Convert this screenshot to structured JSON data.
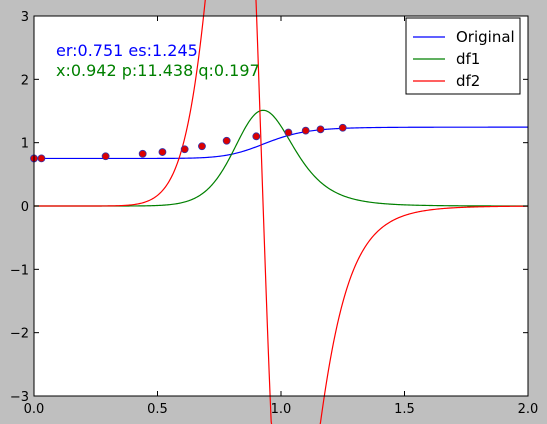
{
  "chart_data": {
    "type": "line",
    "xlim": [
      0.0,
      2.0
    ],
    "ylim": [
      -3,
      3
    ],
    "x_ticks": [
      "0.0",
      "0.5",
      "1.0",
      "1.5",
      "2.0"
    ],
    "x_tick_values": [
      0.0,
      0.5,
      1.0,
      1.5,
      2.0
    ],
    "y_ticks": [
      "−3",
      "−2",
      "−1",
      "0",
      "1",
      "2",
      "3"
    ],
    "y_tick_values": [
      -3,
      -2,
      -1,
      0,
      1,
      2,
      3
    ],
    "grid": false,
    "legend_placement": "top-right",
    "annotations": [
      {
        "text": "er:0.751 es:1.245",
        "color": "#0000ff"
      },
      {
        "text": "x:0.942 p:11.438 q:0.197",
        "color": "#008000"
      }
    ],
    "model": {
      "er": 0.751,
      "es": 1.245,
      "x": 0.942,
      "p": 11.438,
      "q": 0.197
    },
    "series": [
      {
        "name": "Original",
        "color": "#0000ff",
        "kind": "f"
      },
      {
        "name": "df1",
        "color": "#008000",
        "kind": "df1"
      },
      {
        "name": "df2",
        "color": "#ff0000",
        "kind": "df2"
      }
    ],
    "scatter": {
      "fill": "#dd0000",
      "edge": "#3333aa",
      "x": [
        0.0,
        0.03,
        0.29,
        0.44,
        0.52,
        0.61,
        0.68,
        0.78,
        0.9,
        1.03,
        1.1,
        1.16,
        1.25
      ],
      "y": [
        0.751,
        0.752,
        0.785,
        0.824,
        0.852,
        0.896,
        0.944,
        1.03,
        1.1,
        1.16,
        1.19,
        1.21,
        1.235
      ]
    }
  }
}
